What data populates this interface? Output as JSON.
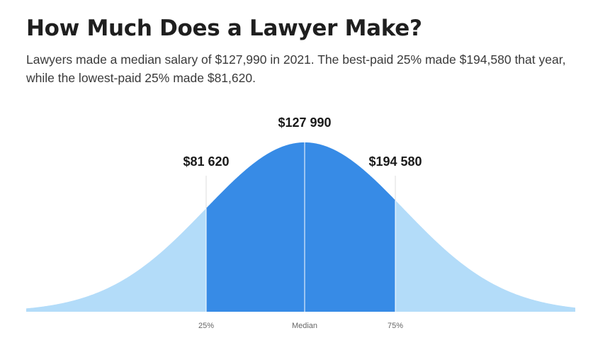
{
  "header": {
    "title": "How Much Does a Lawyer Make?",
    "subtitle": "Lawyers made a median salary of $127,990 in 2021. The best-paid 25% made $194,580 that year, while the lowest-paid 25% made $81,620."
  },
  "chart_data": {
    "type": "area",
    "distribution": "normal",
    "markers": [
      {
        "key": "p25",
        "tick_label": "25%",
        "value": 81620,
        "value_label": "$81 620"
      },
      {
        "key": "median",
        "tick_label": "Median",
        "value": 127990,
        "value_label": "$127 990"
      },
      {
        "key": "p75",
        "tick_label": "75%",
        "value": 194580,
        "value_label": "$194 580"
      }
    ],
    "shaded_range": [
      "25%",
      "75%"
    ],
    "grid": false,
    "legend": "none",
    "colors": {
      "tail_fill": "#b3dcf9",
      "middle_fill": "#378be6",
      "marker_line": "#ffffff",
      "guide_line": "#dddddd"
    }
  }
}
